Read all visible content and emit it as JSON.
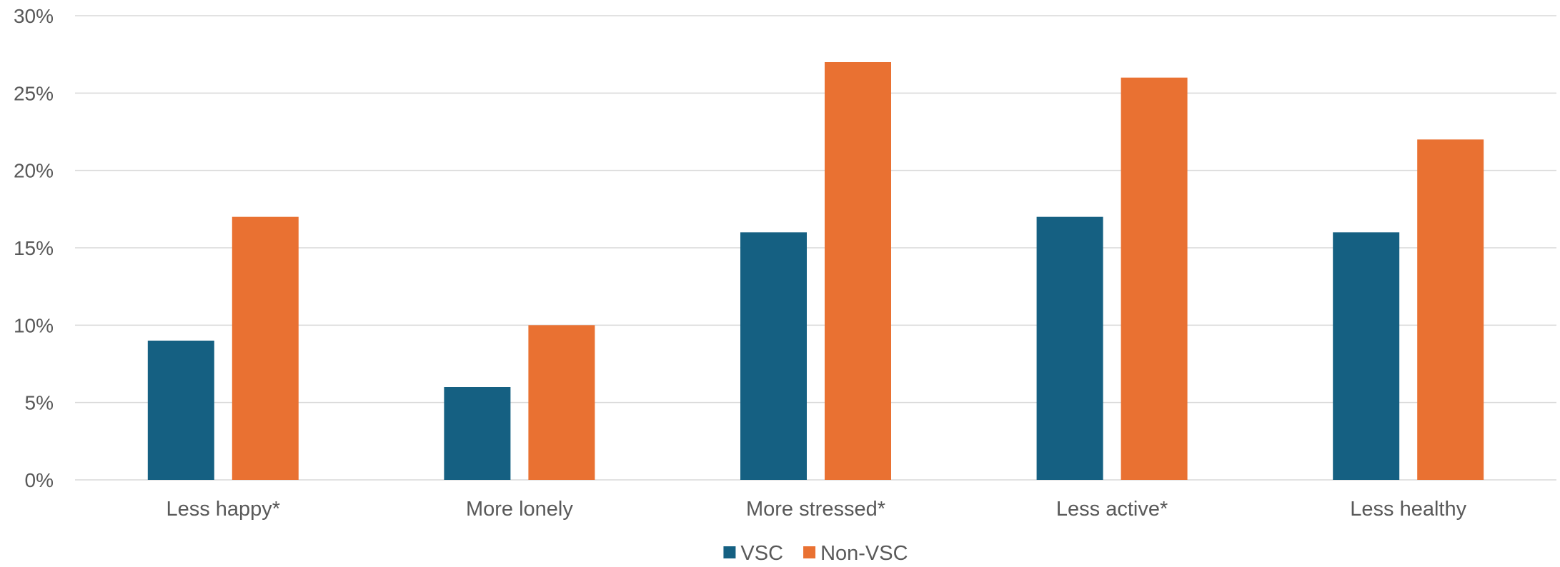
{
  "chart_data": {
    "type": "bar",
    "title": "",
    "xlabel": "",
    "ylabel": "",
    "categories": [
      "Less happy*",
      "More lonely",
      "More stressed*",
      "Less active*",
      "Less healthy"
    ],
    "series": [
      {
        "name": "VSC",
        "color": "#156082",
        "values": [
          9,
          6,
          16,
          17,
          16
        ]
      },
      {
        "name": "Non-VSC",
        "color": "#E97132",
        "values": [
          17,
          10,
          27,
          26,
          22
        ]
      }
    ],
    "ylim": [
      0,
      30
    ],
    "yticks": [
      0,
      5,
      10,
      15,
      20,
      25,
      30
    ],
    "ytick_labels": [
      "0%",
      "5%",
      "10%",
      "15%",
      "20%",
      "25%",
      "30%"
    ],
    "value_format": "percent",
    "grid": true,
    "legend_position": "bottom",
    "colors": {
      "gridline": "#D9D9D9",
      "text": "#595959"
    }
  }
}
